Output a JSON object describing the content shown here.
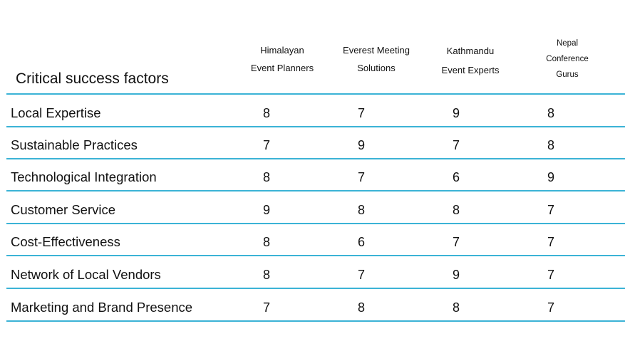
{
  "table": {
    "title": "Critical success factors",
    "columns": [
      {
        "lines": [
          "Himalayan",
          "Event Planners"
        ]
      },
      {
        "lines": [
          "Everest Meeting",
          "Solutions"
        ]
      },
      {
        "lines": [
          "Kathmandu",
          "Event Experts"
        ]
      },
      {
        "lines": [
          "Nepal",
          "Conference",
          "Gurus"
        ]
      }
    ],
    "rows": [
      {
        "label": "Local Expertise",
        "values": [
          "8",
          "7",
          "9",
          "8"
        ]
      },
      {
        "label": "Sustainable Practices",
        "values": [
          "7",
          "9",
          "7",
          "8"
        ]
      },
      {
        "label": "Technological Integration",
        "values": [
          "8",
          "7",
          "6",
          "9"
        ]
      },
      {
        "label": "Customer Service",
        "values": [
          "9",
          "8",
          "8",
          "7"
        ]
      },
      {
        "label": "Cost-Effectiveness",
        "values": [
          "8",
          "6",
          "7",
          "7"
        ]
      },
      {
        "label": "Network of Local Vendors",
        "values": [
          "8",
          "7",
          "9",
          "7"
        ]
      },
      {
        "label": "Marketing and Brand Presence",
        "values": [
          "7",
          "8",
          "8",
          "7"
        ]
      }
    ],
    "rule_color": "#3bb3d6"
  }
}
